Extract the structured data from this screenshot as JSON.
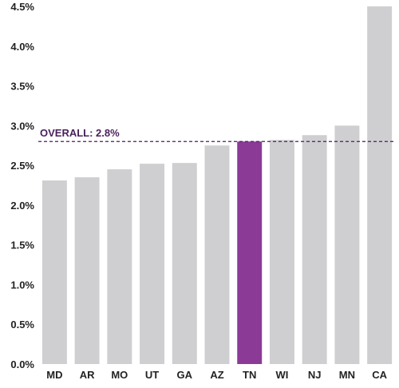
{
  "chart_data": {
    "type": "bar",
    "title": "",
    "xlabel": "",
    "ylabel": "",
    "categories": [
      "MD",
      "AR",
      "MO",
      "UT",
      "GA",
      "AZ",
      "TN",
      "WI",
      "NJ",
      "MN",
      "CA"
    ],
    "values": [
      2.31,
      2.35,
      2.45,
      2.52,
      2.53,
      2.75,
      2.8,
      2.82,
      2.88,
      3.0,
      4.5
    ],
    "highlight_category": "TN",
    "ylim": [
      0,
      4.5
    ],
    "yticks": [
      "0.0%",
      "0.5%",
      "1.0%",
      "1.5%",
      "2.0%",
      "2.5%",
      "3.0%",
      "3.5%",
      "4.0%",
      "4.5%"
    ],
    "ytick_values": [
      0,
      0.5,
      1.0,
      1.5,
      2.0,
      2.5,
      3.0,
      3.5,
      4.0,
      4.5
    ],
    "reference_line": {
      "label": "OVERALL: 2.8%",
      "value": 2.8,
      "style": "dashed"
    },
    "grid": false,
    "legend": "none",
    "colors": {
      "bar": "#cfcfd1",
      "highlight": "#8b3a96",
      "reference": "#4a1f5c"
    }
  }
}
